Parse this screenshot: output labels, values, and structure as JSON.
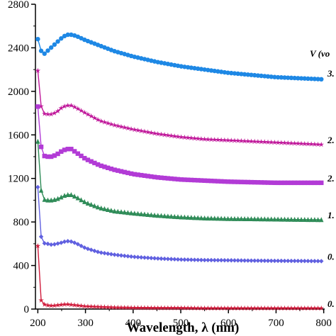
{
  "chart_data": {
    "type": "scatter",
    "title": "",
    "xlabel": "Wavelength, λ (nm)",
    "ylabel": "",
    "xlim": [
      195,
      802
    ],
    "ylim": [
      0,
      2800
    ],
    "xticks": [
      200,
      300,
      400,
      500,
      600,
      700,
      800
    ],
    "yticks": [
      0,
      400,
      800,
      1200,
      1600,
      2000,
      2400,
      2800
    ],
    "legend_title": "V (vo",
    "series": [
      {
        "name": "3.",
        "color": "#1e88e5",
        "marker": "circle",
        "x": [
          200,
          205,
          210,
          220,
          230,
          240,
          250,
          260,
          270,
          280,
          300,
          330,
          360,
          400,
          450,
          500,
          550,
          600,
          650,
          700,
          750,
          800
        ],
        "y": [
          2480,
          2400,
          2330,
          2370,
          2410,
          2450,
          2490,
          2520,
          2520,
          2510,
          2470,
          2420,
          2370,
          2320,
          2270,
          2230,
          2200,
          2170,
          2150,
          2130,
          2120,
          2110
        ]
      },
      {
        "name": "2.",
        "color": "#c0189a",
        "marker": "star",
        "x": [
          200,
          203,
          206,
          210,
          215,
          220,
          230,
          240,
          250,
          260,
          270,
          280,
          300,
          330,
          360,
          400,
          450,
          500,
          550,
          600,
          650,
          700,
          750,
          800
        ],
        "y": [
          2190,
          2020,
          1880,
          1810,
          1790,
          1790,
          1790,
          1810,
          1850,
          1870,
          1870,
          1850,
          1800,
          1730,
          1690,
          1650,
          1610,
          1580,
          1560,
          1550,
          1540,
          1530,
          1520,
          1510
        ]
      },
      {
        "name": "2.",
        "color": "#b23bd6",
        "marker": "square",
        "x": [
          200,
          203,
          206,
          210,
          215,
          220,
          230,
          240,
          250,
          260,
          270,
          280,
          300,
          330,
          360,
          400,
          450,
          500,
          550,
          600,
          650,
          700,
          750,
          800
        ],
        "y": [
          1860,
          1650,
          1510,
          1430,
          1400,
          1400,
          1400,
          1420,
          1450,
          1470,
          1470,
          1440,
          1380,
          1320,
          1280,
          1240,
          1210,
          1190,
          1180,
          1170,
          1165,
          1160,
          1160,
          1160
        ]
      },
      {
        "name": "1.",
        "color": "#2e8b57",
        "marker": "triangle",
        "x": [
          200,
          203,
          206,
          210,
          215,
          220,
          230,
          240,
          250,
          260,
          270,
          280,
          300,
          330,
          360,
          400,
          450,
          500,
          550,
          600,
          650,
          700,
          750,
          800
        ],
        "y": [
          1540,
          1280,
          1110,
          1030,
          1000,
          1000,
          1000,
          1010,
          1030,
          1050,
          1050,
          1030,
          980,
          930,
          900,
          880,
          860,
          845,
          835,
          830,
          828,
          825,
          822,
          820
        ]
      },
      {
        "name": "0.",
        "color": "#6060e0",
        "marker": "diamond",
        "x": [
          200,
          203,
          206,
          210,
          215,
          220,
          230,
          240,
          250,
          260,
          270,
          280,
          300,
          330,
          360,
          400,
          450,
          500,
          550,
          600,
          650,
          700,
          750,
          800
        ],
        "y": [
          1120,
          820,
          680,
          620,
          600,
          600,
          590,
          600,
          610,
          625,
          620,
          605,
          560,
          520,
          500,
          480,
          465,
          455,
          450,
          448,
          445,
          443,
          442,
          440
        ]
      },
      {
        "name": "0.",
        "color": "#d01c3c",
        "marker": "star",
        "x": [
          200,
          203,
          206,
          210,
          215,
          220,
          230,
          240,
          250,
          260,
          270,
          280,
          300,
          330,
          360,
          400,
          450,
          500,
          550,
          600,
          650,
          700,
          750,
          800
        ],
        "y": [
          580,
          210,
          90,
          50,
          40,
          35,
          30,
          35,
          40,
          45,
          40,
          35,
          25,
          20,
          15,
          12,
          10,
          10,
          8,
          8,
          8,
          8,
          8,
          8
        ]
      }
    ]
  }
}
